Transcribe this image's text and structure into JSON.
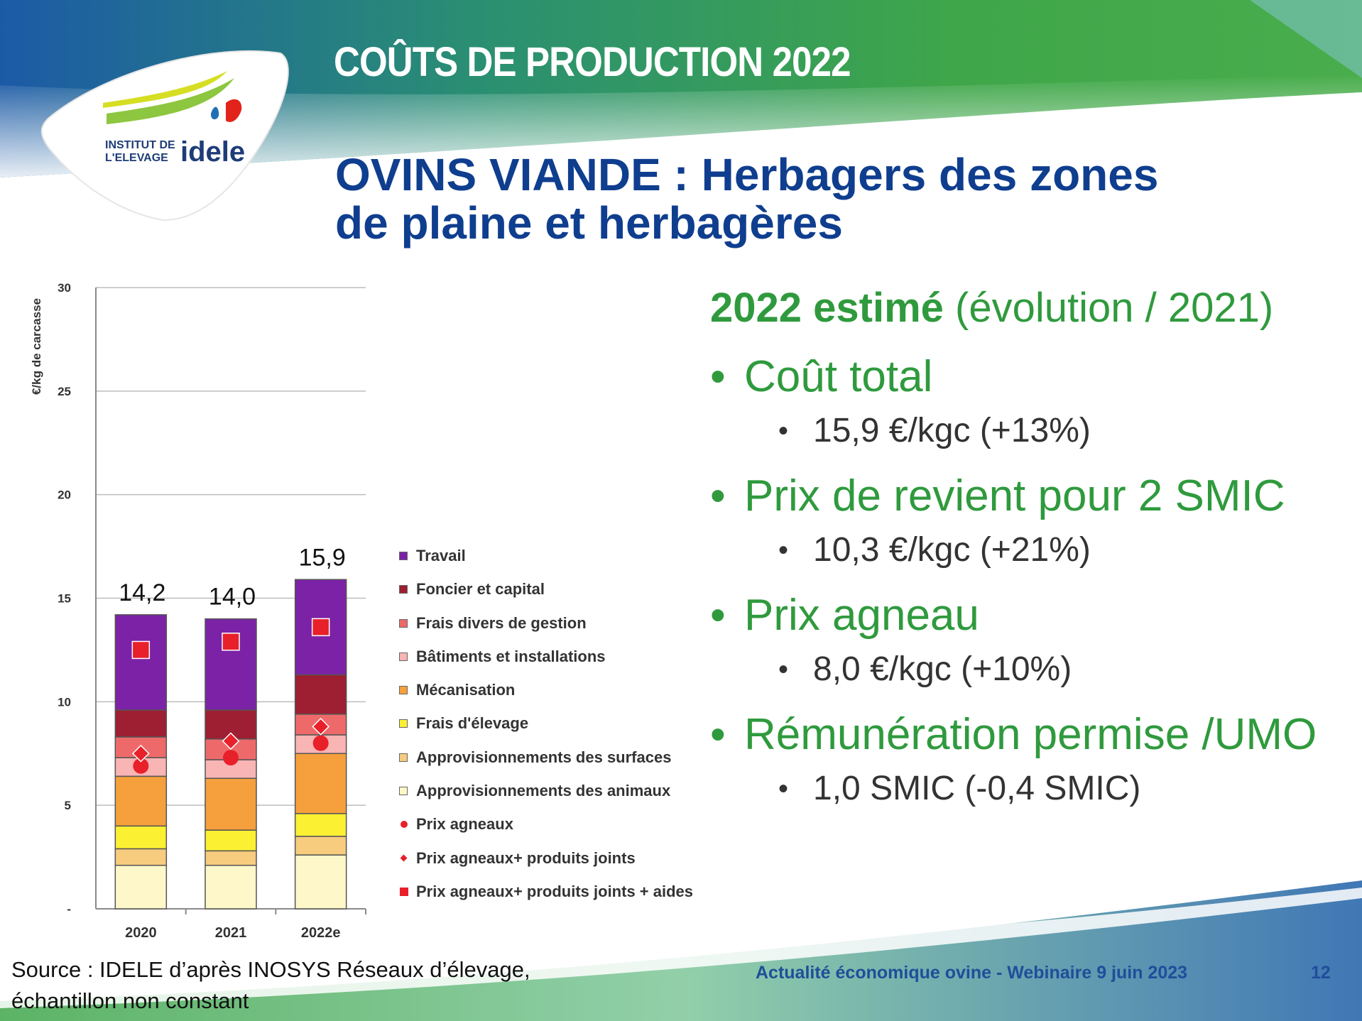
{
  "header": {
    "label": "COÛTS DE PRODUCTION 2022",
    "title_line1": "OVINS VIANDE : Herbagers des zones",
    "title_line2": "de plaine et herbagères"
  },
  "logo": {
    "line1": "INSTITUT DE",
    "line2": "L'ELEVAGE",
    "brand": "idele"
  },
  "summary": {
    "heading_bold": "2022 estimé",
    "heading_rest": " (évolution / 2021)",
    "bullet": "•",
    "items": [
      {
        "label": "Coût total",
        "value": "15,9 €/kgc  (+13%)"
      },
      {
        "label": "Prix de revient pour 2 SMIC",
        "value": "10,3 €/kgc  (+21%)"
      },
      {
        "label": "Prix agneau",
        "value": "8,0 €/kgc (+10%)"
      },
      {
        "label": "Rémunération permise /UMO",
        "value": "1,0 SMIC (-0,4 SMIC)"
      }
    ]
  },
  "source": {
    "line1": "Source : IDELE d’après INOSYS Réseaux d’élevage,",
    "line2": "échantillon non  constant"
  },
  "footer": {
    "text": "Actualité économique ovine - Webinaire 9 juin 2023",
    "page": "12"
  },
  "colors": {
    "title_blue": "#0f3e8f",
    "green": "#2f9a3d",
    "header_green": "#3aa54a",
    "header_blue": "#1a5fa8"
  },
  "chart_data": {
    "type": "bar",
    "stacked": true,
    "ylabel": "€/kg de carcasse",
    "ylim": [
      0,
      30
    ],
    "yticks": [
      {
        "value": 0,
        "label": "-"
      },
      {
        "value": 5,
        "label": "5"
      },
      {
        "value": 10,
        "label": "10"
      },
      {
        "value": 15,
        "label": "15"
      },
      {
        "value": 20,
        "label": "20"
      },
      {
        "value": 25,
        "label": "25"
      },
      {
        "value": 30,
        "label": "30"
      }
    ],
    "grid": true,
    "legend_position": "right",
    "categories": [
      "2020",
      "2021",
      "2022e"
    ],
    "totals": [
      14.2,
      14.0,
      15.9
    ],
    "total_labels": [
      "14,2",
      "14,0",
      "15,9"
    ],
    "series": [
      {
        "name": "Approvisionnements des animaux",
        "color": "#fdf7c9",
        "values": [
          2.1,
          2.1,
          2.6
        ]
      },
      {
        "name": "Approvisionnements des surfaces",
        "color": "#f7cc7e",
        "values": [
          0.8,
          0.7,
          0.9
        ]
      },
      {
        "name": "Frais d'élevage",
        "color": "#fbf032",
        "values": [
          1.1,
          1.0,
          1.1
        ]
      },
      {
        "name": "Mécanisation",
        "color": "#f5a03c",
        "values": [
          2.4,
          2.5,
          2.9
        ]
      },
      {
        "name": "Bâtiments et installations",
        "color": "#f9b4b4",
        "values": [
          0.9,
          0.9,
          0.9
        ]
      },
      {
        "name": "Frais divers de gestion",
        "color": "#ee6a6a",
        "values": [
          1.0,
          1.0,
          1.0
        ]
      },
      {
        "name": "Foncier et capital",
        "color": "#9e1e32",
        "values": [
          1.3,
          1.4,
          1.9
        ]
      },
      {
        "name": "Travail",
        "color": "#7b22a6",
        "values": [
          4.6,
          4.4,
          4.6
        ]
      }
    ],
    "markers": [
      {
        "name": "Prix agneaux",
        "shape": "circle",
        "color": "#e8202a",
        "values": [
          6.9,
          7.3,
          8.0
        ]
      },
      {
        "name": "Prix agneaux+ produits joints",
        "shape": "diamond",
        "color": "#e8202a",
        "values": [
          7.5,
          8.1,
          8.8
        ]
      },
      {
        "name": "Prix agneaux+ produits joints + aides",
        "shape": "square",
        "color": "#e8202a",
        "values": [
          12.5,
          12.9,
          13.6
        ]
      }
    ],
    "legend": [
      {
        "name": "Travail",
        "kind": "swatch",
        "color": "#7b22a6"
      },
      {
        "name": "Foncier et capital",
        "kind": "swatch",
        "color": "#9e1e32"
      },
      {
        "name": "Frais divers de gestion",
        "kind": "swatch",
        "color": "#ee6a6a"
      },
      {
        "name": "Bâtiments et installations",
        "kind": "swatch",
        "color": "#f9b4b4"
      },
      {
        "name": "Mécanisation",
        "kind": "swatch",
        "color": "#f5a03c"
      },
      {
        "name": "Frais d'élevage",
        "kind": "swatch",
        "color": "#fbf032"
      },
      {
        "name": "Approvisionnements des surfaces",
        "kind": "swatch",
        "color": "#f7cc7e"
      },
      {
        "name": "Approvisionnements des animaux",
        "kind": "swatch",
        "color": "#fdf7c9"
      },
      {
        "name": "Prix agneaux",
        "kind": "circle",
        "color": "#e8202a"
      },
      {
        "name": "Prix agneaux+ produits joints",
        "kind": "diamond",
        "color": "#e8202a"
      },
      {
        "name": "Prix agneaux+ produits joints + aides",
        "kind": "square",
        "color": "#e8202a"
      }
    ]
  }
}
